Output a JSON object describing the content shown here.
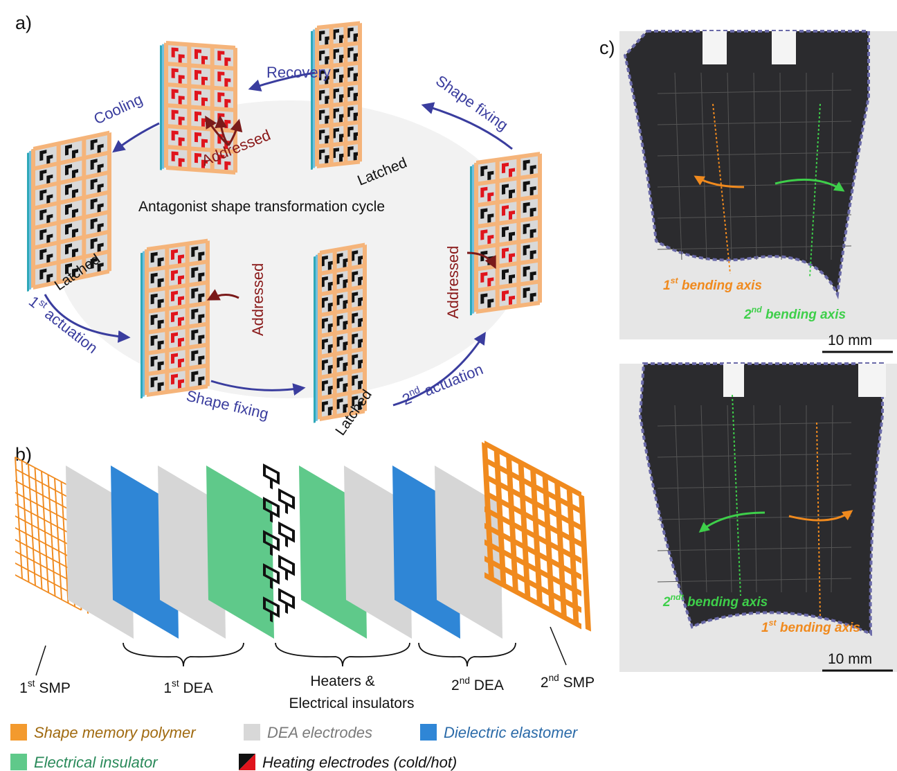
{
  "panel_a": {
    "label": "a)",
    "cycle_title": "Antagonist shape transformation cycle",
    "steps": {
      "cooling": "Cooling",
      "recovery": "Recovery",
      "shape_fixing_top": "Shape fixing",
      "first_actuation": {
        "pre": "1",
        "sup": "st",
        "post": " actuation"
      },
      "shape_fixing_bottom": "Shape fixing",
      "second_actuation": {
        "pre": "2",
        "sup": "nd",
        "post": " actuation"
      }
    },
    "states": [
      "Addressed",
      "Latched",
      "Latched",
      "Addressed",
      "Latched",
      "Addressed"
    ]
  },
  "panel_b": {
    "label": "b)",
    "groups": [
      {
        "pre": "1",
        "sup": "st",
        "post": " SMP"
      },
      {
        "pre": "1",
        "sup": "st",
        "post": " DEA"
      },
      {
        "lines": [
          "Heaters &",
          "Electrical insulators"
        ]
      },
      {
        "pre": "2",
        "sup": "nd",
        "post": " DEA"
      },
      {
        "pre": "2",
        "sup": "nd",
        "post": " SMP"
      }
    ],
    "legend": [
      "Shape memory polymer",
      "DEA electrodes",
      "Dielectric elastomer",
      "Electrical insulator",
      "Heating electrodes (cold/hot)"
    ]
  },
  "panel_c": {
    "label": "c)",
    "photos": [
      {
        "axes": [
          {
            "pre": "1",
            "sup": "st",
            "post": " bending axis"
          },
          {
            "pre": "2",
            "sup": "nd",
            "post": " bending axis"
          }
        ],
        "scale_bar": "10 mm"
      },
      {
        "axes": [
          {
            "pre": "2",
            "sup": "ndt",
            "post": " bending axis"
          },
          {
            "pre": "1",
            "sup": "st",
            "post": " bending axis"
          }
        ],
        "scale_bar": "10 mm"
      }
    ]
  }
}
